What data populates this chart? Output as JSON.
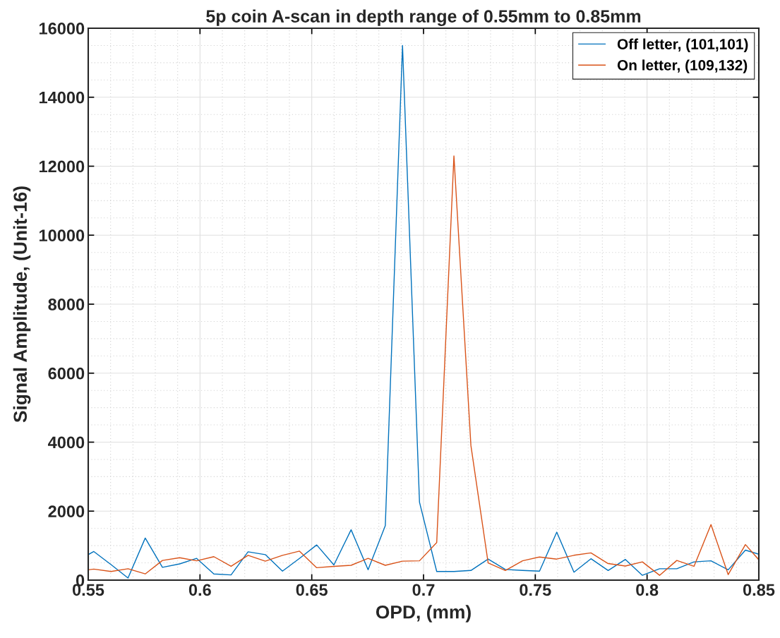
{
  "chart_data": {
    "type": "line",
    "title": "5p coin A-scan in depth range of 0.55mm to 0.85mm",
    "xlabel": "OPD, (mm)",
    "ylabel": "Signal Amplitude, (Unit-16)",
    "x": [
      0.55,
      0.5525,
      0.5602,
      0.5678,
      0.5755,
      0.5832,
      0.5909,
      0.5985,
      0.6062,
      0.6139,
      0.6215,
      0.6292,
      0.6369,
      0.6445,
      0.6522,
      0.6599,
      0.6676,
      0.6752,
      0.6829,
      0.6906,
      0.6982,
      0.7059,
      0.7136,
      0.7212,
      0.7289,
      0.7366,
      0.7443,
      0.7519,
      0.7596,
      0.7673,
      0.7749,
      0.7826,
      0.7903,
      0.7979,
      0.8056,
      0.8133,
      0.821,
      0.8286,
      0.8363,
      0.844,
      0.85
    ],
    "series": [
      {
        "name": "Off letter, (101,101)",
        "color": "#0072bd",
        "values": [
          740,
          830,
          450,
          60,
          1220,
          370,
          470,
          630,
          180,
          150,
          820,
          740,
          260,
          630,
          1020,
          440,
          1460,
          300,
          1580,
          15500,
          2260,
          250,
          250,
          280,
          610,
          310,
          280,
          260,
          1390,
          230,
          620,
          280,
          600,
          140,
          330,
          330,
          530,
          560,
          300,
          870,
          750
        ]
      },
      {
        "name": "On letter, (109,132)",
        "color": "#d95319",
        "values": [
          300,
          320,
          250,
          330,
          180,
          570,
          650,
          560,
          680,
          400,
          720,
          550,
          720,
          840,
          360,
          400,
          430,
          630,
          430,
          550,
          560,
          1090,
          12300,
          3900,
          500,
          280,
          560,
          670,
          610,
          720,
          790,
          480,
          410,
          530,
          140,
          570,
          400,
          1610,
          160,
          1030,
          590
        ]
      }
    ],
    "xlim": [
      0.55,
      0.85
    ],
    "xticks": [
      0.55,
      0.6,
      0.65,
      0.7,
      0.75,
      0.8,
      0.85
    ],
    "ylim": [
      0,
      16000
    ],
    "yticks": [
      0,
      2000,
      4000,
      6000,
      8000,
      10000,
      12000,
      14000,
      16000
    ],
    "grid": true,
    "legend": "top right",
    "marker": "none",
    "line_style": "solid"
  }
}
